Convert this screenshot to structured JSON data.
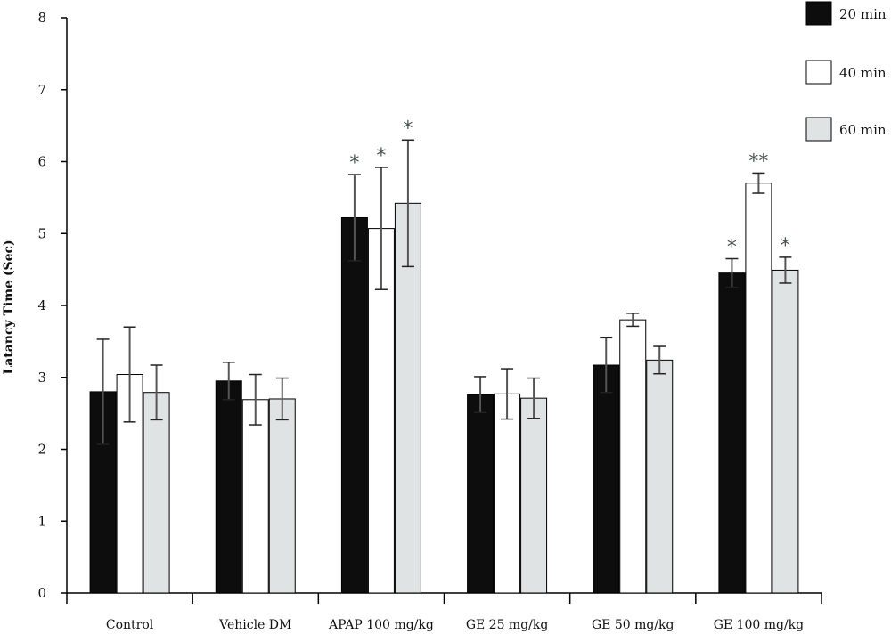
{
  "chart_data": {
    "type": "bar",
    "title": "",
    "xlabel": "",
    "ylabel": "Latancy Time (Sec)",
    "ylim": [
      0,
      8
    ],
    "yticks": [
      "0",
      "1",
      "2",
      "3",
      "4",
      "5",
      "6",
      "7",
      "8"
    ],
    "grid": false,
    "legend_position": "top-right",
    "categories": [
      "Control",
      "Vehicle DM",
      "APAP 100 mg/kg",
      "GE 25 mg/kg",
      "GE 50 mg/kg",
      "GE 100 mg/kg"
    ],
    "series": [
      {
        "name": "20 min",
        "color": "#0d0d0d",
        "values": [
          2.8,
          2.95,
          5.22,
          2.76,
          3.17,
          4.45
        ],
        "errors": [
          0.73,
          0.26,
          0.6,
          0.25,
          0.38,
          0.2
        ],
        "annotations": [
          "",
          "",
          "*",
          "",
          "",
          "*"
        ]
      },
      {
        "name": "40 min",
        "color": "#ffffff",
        "values": [
          3.04,
          2.69,
          5.07,
          2.77,
          3.8,
          5.7
        ],
        "errors": [
          0.66,
          0.35,
          0.85,
          0.35,
          0.09,
          0.14
        ],
        "annotations": [
          "",
          "",
          "*",
          "",
          "",
          "**"
        ]
      },
      {
        "name": "60 min",
        "color": "#dfe3e3",
        "values": [
          2.79,
          2.7,
          5.42,
          2.71,
          3.24,
          4.49
        ],
        "errors": [
          0.38,
          0.29,
          0.88,
          0.28,
          0.19,
          0.18
        ],
        "annotations": [
          "",
          "",
          "*",
          "",
          "",
          "*"
        ]
      }
    ]
  }
}
